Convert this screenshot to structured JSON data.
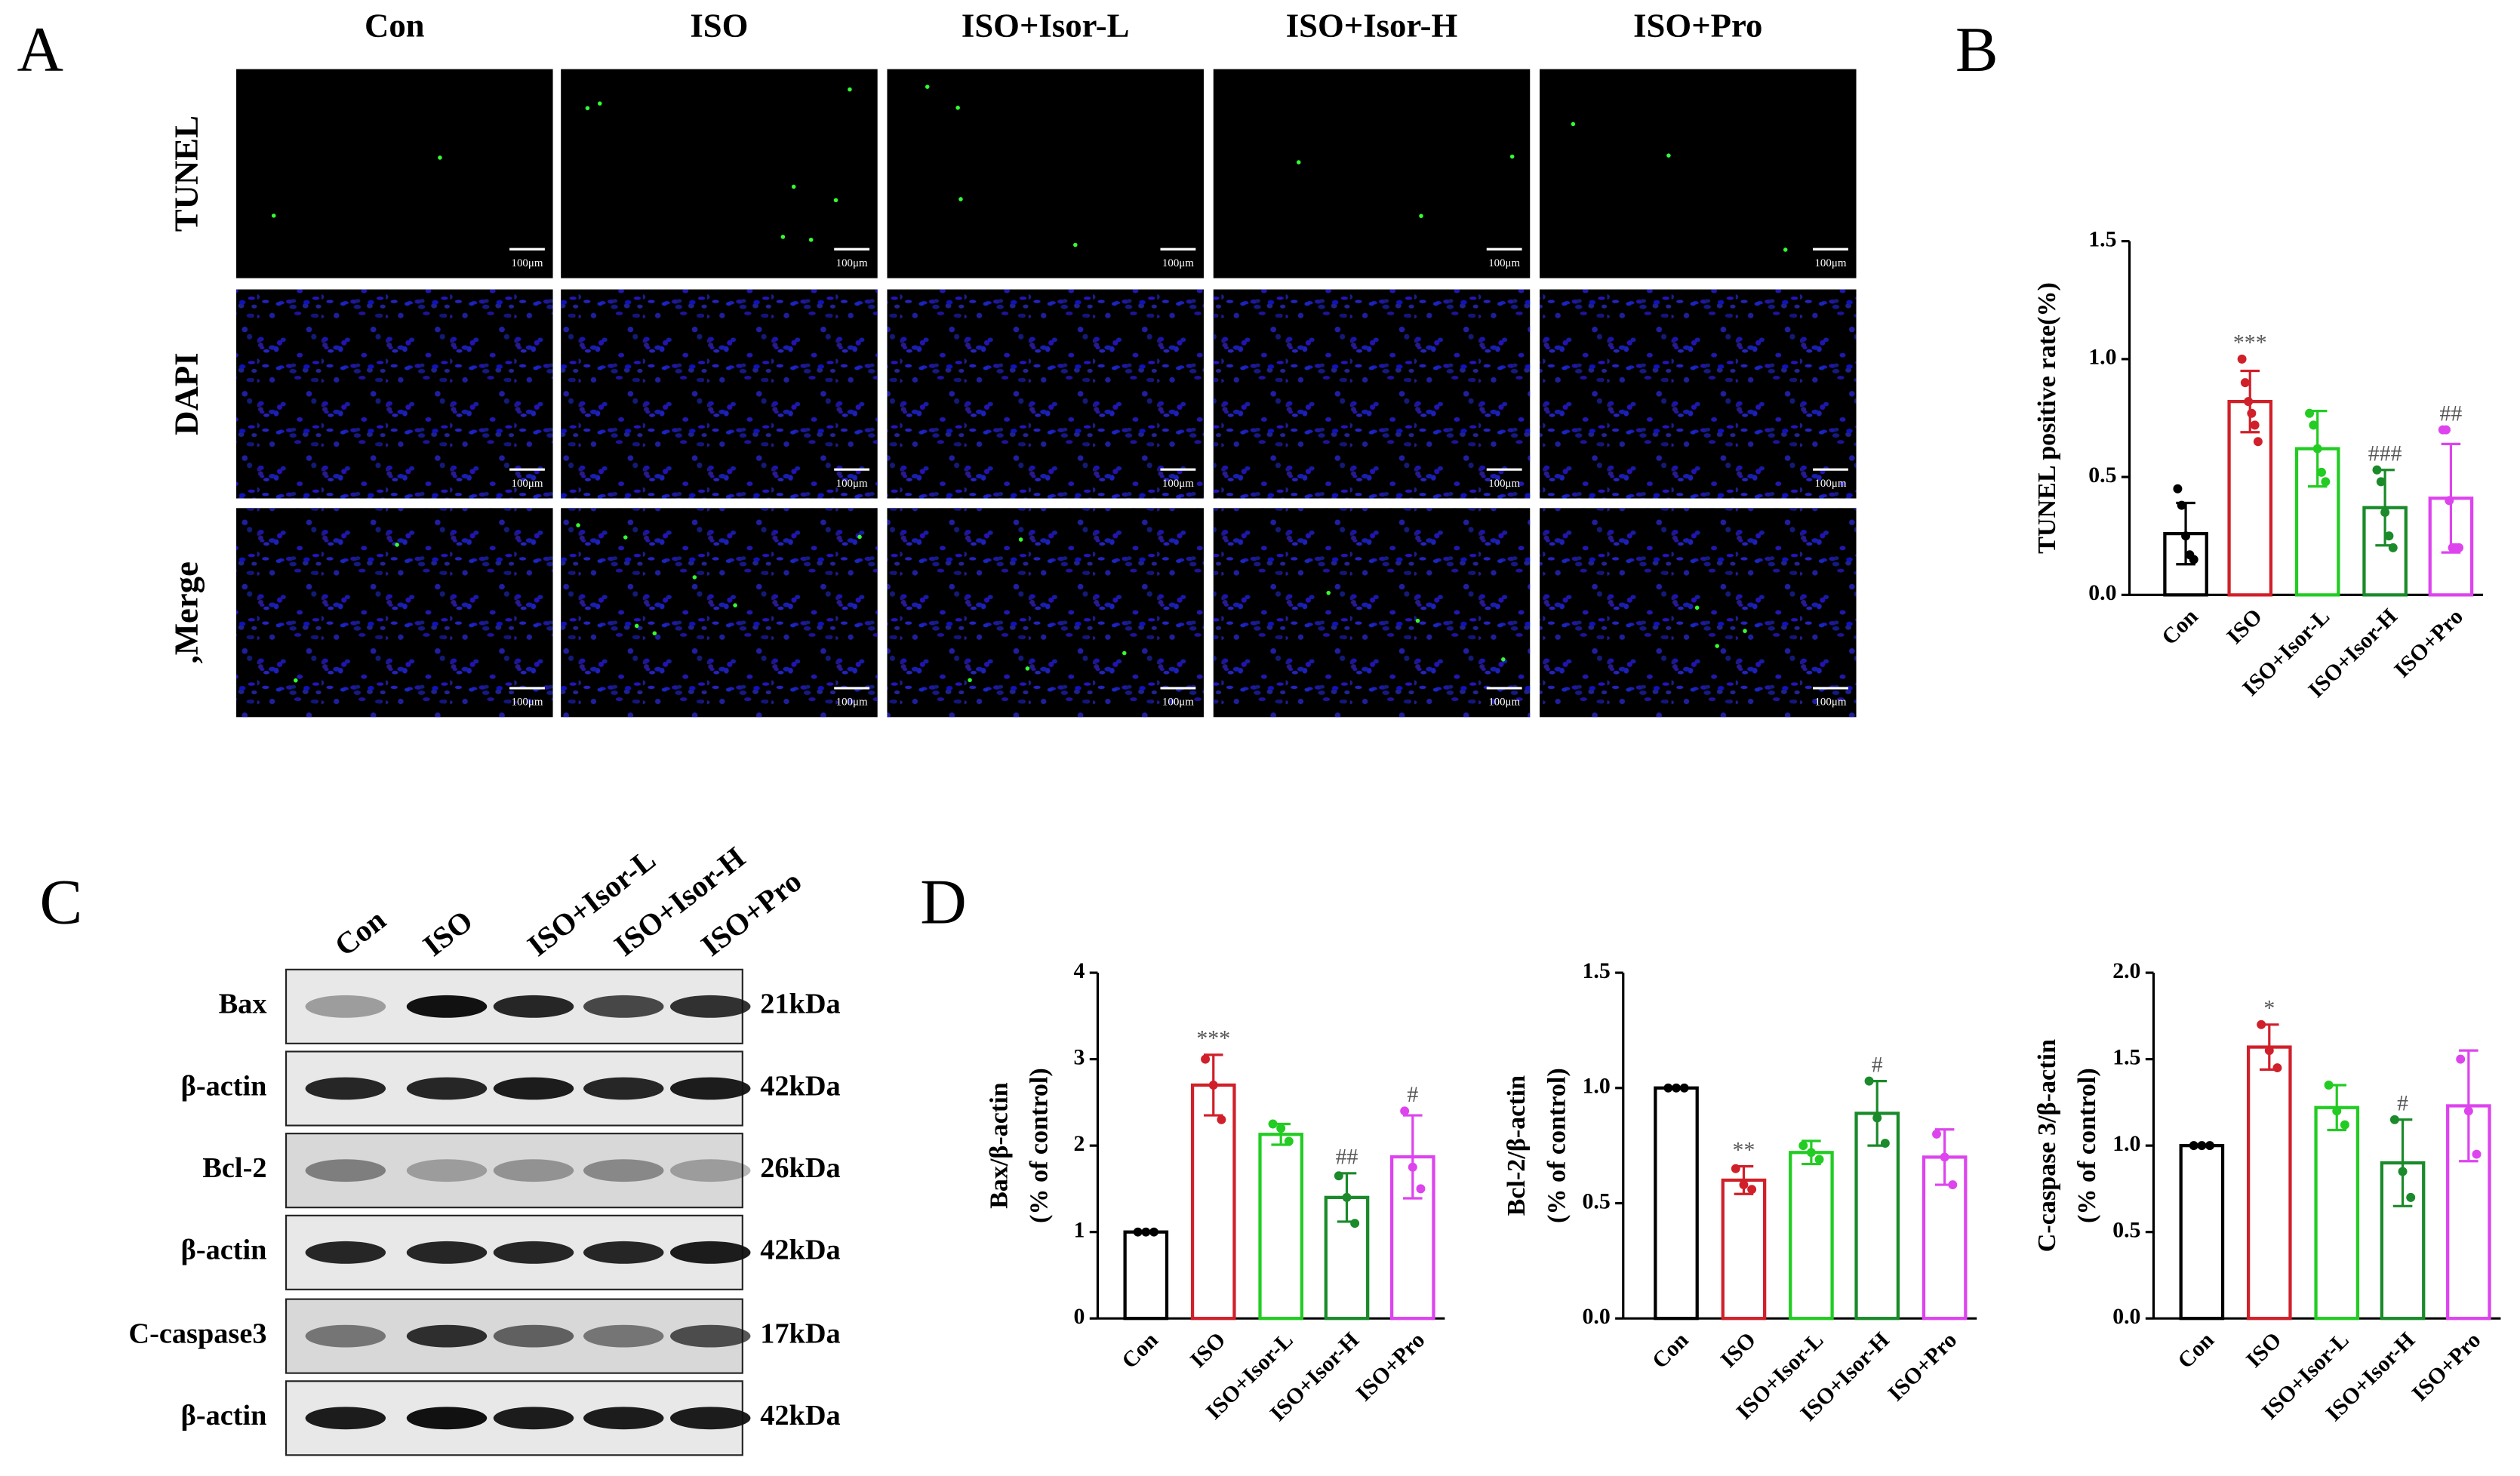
{
  "panel_labels": [
    "A",
    "B",
    "C",
    "D"
  ],
  "microscopy": {
    "columns": [
      "Con",
      "ISO",
      "ISO+Isor-L",
      "ISO+Isor-H",
      "ISO+Pro"
    ],
    "rows": [
      "TUNEL",
      "DAPI",
      ",Merge"
    ],
    "scale_bar": "100μm"
  },
  "western_blot": {
    "lanes": [
      "Con",
      "ISO",
      "ISO+Isor-L",
      "ISO+Isor-H",
      "ISO+Pro"
    ],
    "rows": [
      {
        "protein": "Bax",
        "size": "21kDa"
      },
      {
        "protein": "β-actin",
        "size": "42kDa"
      },
      {
        "protein": "Bcl-2",
        "size": "26kDa"
      },
      {
        "protein": "β-actin",
        "size": "42kDa"
      },
      {
        "protein": "C-caspase3",
        "size": "17kDa"
      },
      {
        "protein": "β-actin",
        "size": "42kDa"
      }
    ]
  },
  "chart_data": [
    {
      "type": "bar",
      "y_label": [
        "TUNEL positive rate(%)"
      ],
      "categories": [
        "Con",
        "ISO",
        "ISO+Isor-L",
        "ISO+Isor-H",
        "ISO+Pro"
      ],
      "values": [
        0.26,
        0.82,
        0.62,
        0.37,
        0.41
      ],
      "errors": [
        0.13,
        0.13,
        0.16,
        0.16,
        0.23
      ],
      "points": [
        [
          0.45,
          0.38,
          0.25,
          0.17,
          0.15
        ],
        [
          1.0,
          0.9,
          0.82,
          0.77,
          0.72,
          0.65
        ],
        [
          0.77,
          0.72,
          0.62,
          0.52,
          0.48
        ],
        [
          0.53,
          0.48,
          0.35,
          0.25,
          0.2
        ],
        [
          0.7,
          0.7,
          0.4,
          0.2,
          0.2,
          0.2
        ]
      ],
      "annotations": [
        null,
        "***",
        null,
        "###",
        "##"
      ],
      "annotation_color": "#555555",
      "colors": [
        "#000000",
        "#d0202a",
        "#22cc22",
        "#1a8a2a",
        "#dd44ee"
      ],
      "ylim": [
        0,
        1.5
      ],
      "yticks": [
        {
          "value": 0,
          "label": "0.0"
        },
        0.5,
        {
          "value": 1,
          "label": "1.0"
        },
        1.5
      ]
    },
    {
      "type": "bar",
      "y_label": [
        "Bax/β-actin",
        "(% of control)"
      ],
      "categories": [
        "Con",
        "ISO",
        "ISO+Isor-L",
        "ISO+Isor-H",
        "ISO+Pro"
      ],
      "values": [
        1.0,
        2.7,
        2.13,
        1.4,
        1.87
      ],
      "errors": [
        0,
        0.35,
        0.12,
        0.28,
        0.48
      ],
      "points": [
        [
          1,
          1,
          1
        ],
        [
          3.0,
          2.7,
          2.3
        ],
        [
          2.25,
          2.2,
          2.05
        ],
        [
          1.65,
          1.4,
          1.1
        ],
        [
          2.4,
          1.75,
          1.5
        ]
      ],
      "annotations": [
        null,
        "***",
        null,
        "##",
        "#"
      ],
      "annotation_color": "#555555",
      "colors": [
        "#000000",
        "#d0202a",
        "#22cc22",
        "#1a8a2a",
        "#dd44ee"
      ],
      "ylim": [
        0,
        4
      ],
      "yticks": [
        0,
        1,
        2,
        3,
        4
      ]
    },
    {
      "type": "bar",
      "y_label": [
        "Bcl-2/β-actin",
        "(% of control)"
      ],
      "categories": [
        "Con",
        "ISO",
        "ISO+Isor-L",
        "ISO+Isor-H",
        "ISO+Pro"
      ],
      "values": [
        1.0,
        0.6,
        0.72,
        0.89,
        0.7
      ],
      "errors": [
        0,
        0.06,
        0.05,
        0.14,
        0.12
      ],
      "points": [
        [
          1,
          1,
          1
        ],
        [
          0.65,
          0.58,
          0.56
        ],
        [
          0.75,
          0.72,
          0.69
        ],
        [
          1.03,
          0.87,
          0.76
        ],
        [
          0.8,
          0.7,
          0.58
        ]
      ],
      "annotations": [
        null,
        "**",
        null,
        "#",
        null
      ],
      "annotation_color": "#555555",
      "colors": [
        "#000000",
        "#d0202a",
        "#22cc22",
        "#1a8a2a",
        "#dd44ee"
      ],
      "ylim": [
        0,
        1.5
      ],
      "yticks": [
        {
          "value": 0,
          "label": "0.0"
        },
        0.5,
        {
          "value": 1,
          "label": "1.0"
        },
        1.5
      ]
    },
    {
      "type": "bar",
      "y_label": [
        "C-caspase 3/β-actin",
        "(% of control)"
      ],
      "categories": [
        "Con",
        "ISO",
        "ISO+Isor-L",
        "ISO+Isor-H",
        "ISO+Pro"
      ],
      "values": [
        1.0,
        1.57,
        1.22,
        0.9,
        1.23
      ],
      "errors": [
        0,
        0.13,
        0.13,
        0.25,
        0.32
      ],
      "points": [
        [
          1,
          1,
          1
        ],
        [
          1.7,
          1.55,
          1.45
        ],
        [
          1.35,
          1.2,
          1.12
        ],
        [
          1.15,
          0.85,
          0.7
        ],
        [
          1.5,
          1.2,
          0.95
        ]
      ],
      "annotations": [
        null,
        "*",
        null,
        "#",
        null
      ],
      "annotation_color": "#555555",
      "colors": [
        "#000000",
        "#d0202a",
        "#22cc22",
        "#1a8a2a",
        "#dd44ee"
      ],
      "ylim": [
        0,
        2
      ],
      "yticks": [
        {
          "value": 0,
          "label": "0.0"
        },
        0.5,
        {
          "value": 1,
          "label": "1.0"
        },
        1.5,
        {
          "value": 2,
          "label": "2.0"
        }
      ]
    }
  ]
}
